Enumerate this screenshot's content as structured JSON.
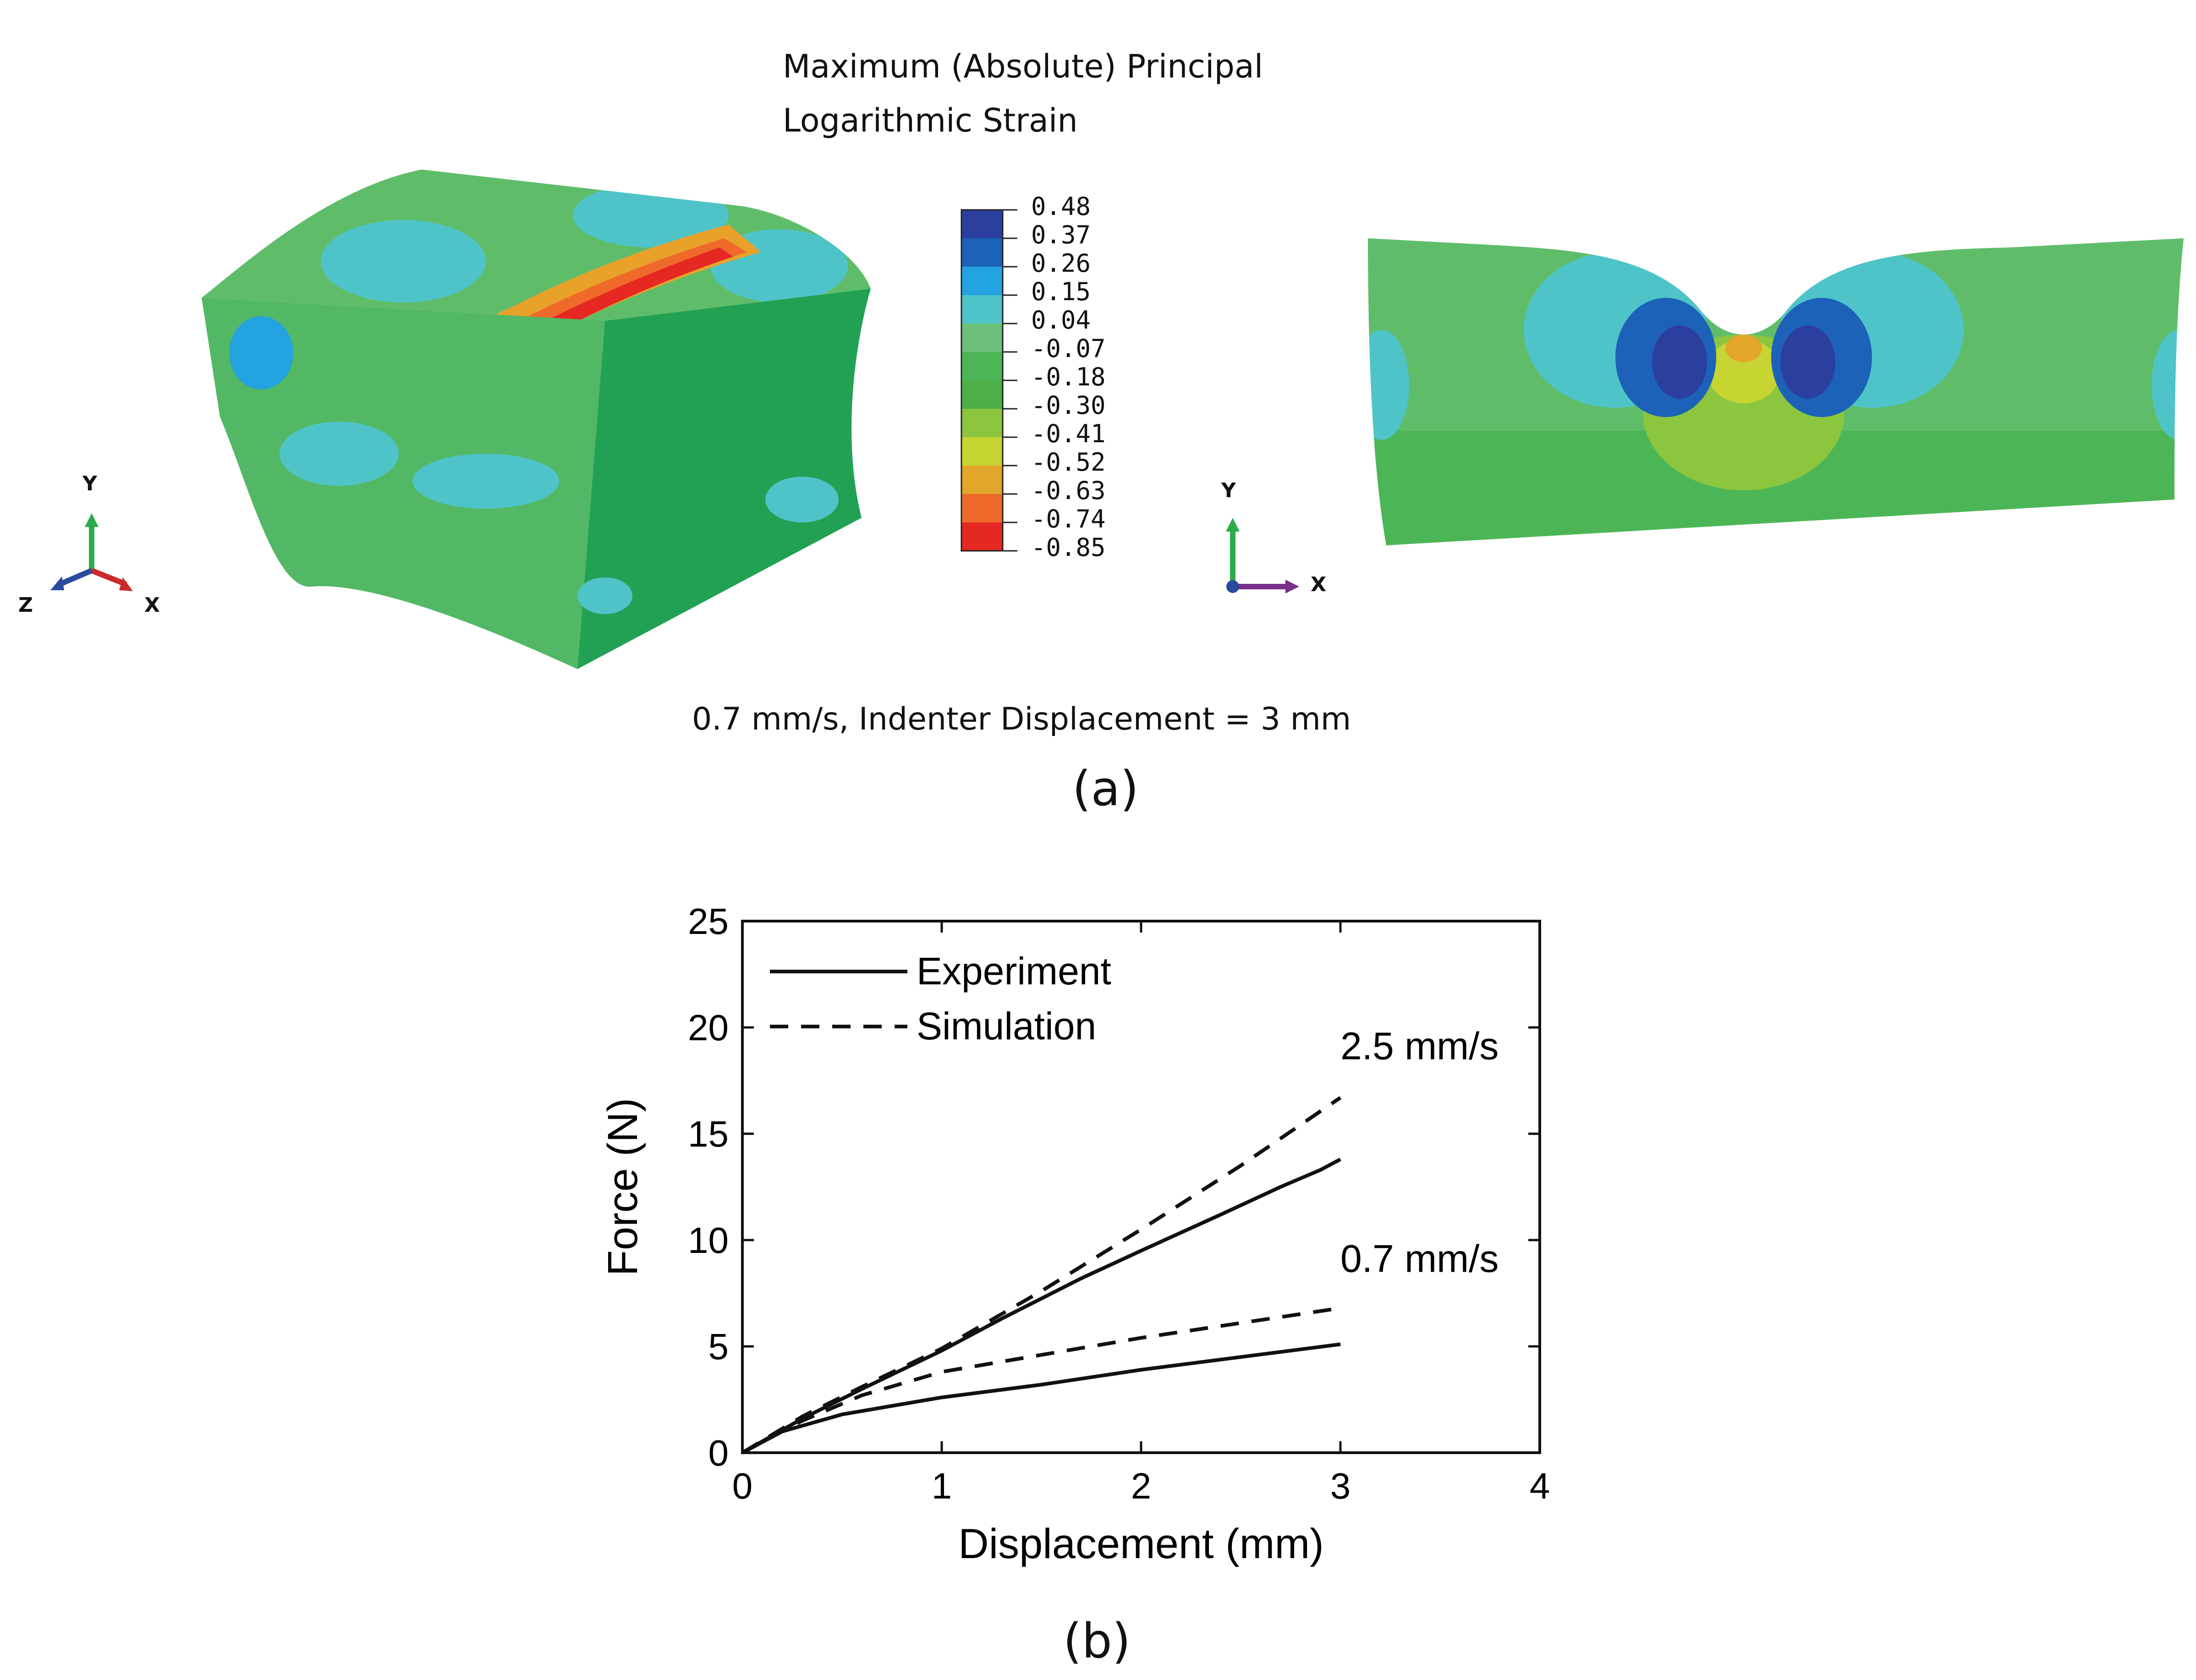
{
  "panel_a": {
    "title_line1": "Maximum (Absolute) Principal",
    "title_line2": "Logarithmic Strain",
    "caption": "0.7 mm/s, Indenter Displacement = 3 mm",
    "label": "(a)",
    "legend": {
      "values": [
        "0.48",
        "0.37",
        "0.26",
        "0.15",
        "0.04",
        "-0.07",
        "-0.18",
        "-0.30",
        "-0.41",
        "-0.52",
        "-0.63",
        "-0.74",
        "-0.85"
      ],
      "colors": [
        "#2b3f9e",
        "#1c62b8",
        "#23a3e0",
        "#4fc4c8",
        "#6cc07a",
        "#4cb657",
        "#4caf48",
        "#8cc63f",
        "#c7d532",
        "#e2a62a",
        "#ef6a2a",
        "#e52821",
        "#e52821"
      ]
    },
    "triad_left": {
      "y": "Y",
      "x": "X",
      "z": "Z"
    },
    "triad_right": {
      "y": "Y",
      "x": "X"
    }
  },
  "panel_b": {
    "label": "(b)"
  },
  "chart_data": {
    "type": "line",
    "xlabel": "Displacement (mm)",
    "ylabel": "Force (N)",
    "xlim": [
      0,
      4
    ],
    "ylim": [
      0,
      25
    ],
    "xticks": [
      0,
      1,
      2,
      3,
      4
    ],
    "yticks": [
      0,
      5,
      10,
      15,
      20,
      25
    ],
    "grid": false,
    "legend": {
      "position": "top-left",
      "entries": [
        {
          "label": "Experiment",
          "style": "solid"
        },
        {
          "label": "Simulation",
          "style": "dashed"
        }
      ]
    },
    "annotations": [
      {
        "text": "2.5 mm/s",
        "x": 3.0,
        "y": 18.5
      },
      {
        "text": "0.7 mm/s",
        "x": 3.0,
        "y": 8.5
      }
    ],
    "series": [
      {
        "name": "Experiment 2.5 mm/s",
        "style": "solid",
        "x": [
          0,
          0.3,
          0.6,
          1.0,
          1.3,
          1.7,
          2.0,
          2.4,
          2.7,
          2.9,
          3.0
        ],
        "y": [
          0,
          1.6,
          3.0,
          4.8,
          6.3,
          8.2,
          9.5,
          11.2,
          12.5,
          13.3,
          13.8
        ]
      },
      {
        "name": "Simulation 2.5 mm/s",
        "style": "dashed",
        "x": [
          0,
          0.3,
          0.6,
          1.0,
          1.5,
          2.0,
          2.5,
          3.0
        ],
        "y": [
          0,
          1.7,
          3.1,
          4.9,
          7.6,
          10.5,
          13.5,
          16.7
        ]
      },
      {
        "name": "Experiment 0.7 mm/s",
        "style": "solid",
        "x": [
          0,
          0.2,
          0.5,
          1.0,
          1.5,
          2.0,
          2.5,
          3.0
        ],
        "y": [
          0,
          1.0,
          1.8,
          2.6,
          3.2,
          3.9,
          4.5,
          5.1
        ]
      },
      {
        "name": "Simulation 0.7 mm/s",
        "style": "dashed",
        "x": [
          0,
          0.3,
          0.6,
          1.0,
          1.5,
          2.0,
          2.5,
          3.0
        ],
        "y": [
          0,
          1.5,
          2.7,
          3.8,
          4.6,
          5.4,
          6.1,
          6.8
        ]
      }
    ]
  }
}
